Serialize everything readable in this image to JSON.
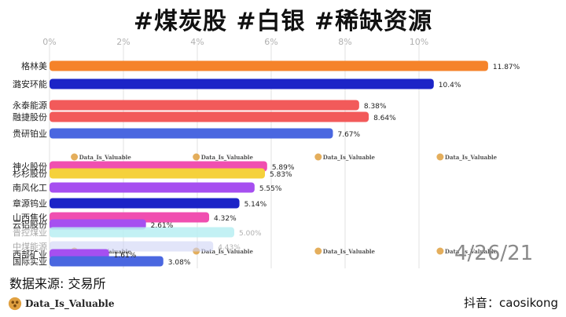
{
  "title": "#煤炭股 #白银 #稀缺资源",
  "date": "4/26/21",
  "source": "数据来源: 交易所",
  "brand": "Data_Is_Valuable",
  "tiktok": "抖音：caosikong",
  "chart_data": {
    "type": "bar",
    "orientation": "horizontal",
    "x_ticks": [
      "0%",
      "2%",
      "4%",
      "6%",
      "8%",
      "10%"
    ],
    "xlim": [
      0,
      12
    ],
    "grid": true,
    "value_format": "percent",
    "categories": [
      "格林美",
      "潞安环能",
      "永泰能源",
      "融捷股份",
      "贵研铂业",
      "神火股份",
      "杉杉股份",
      "南风化工",
      "章源钨业",
      "山西焦化",
      "云铝股份",
      "晋控煤业",
      "中煤能源",
      "西部矿业",
      "国际实业"
    ],
    "values": [
      11.87,
      10.4,
      8.38,
      8.64,
      7.67,
      5.89,
      5.83,
      5.55,
      5.14,
      4.32,
      2.61,
      5.0,
      4.43,
      1.61,
      3.08
    ],
    "value_labels": [
      "11.87%",
      "10.4%",
      "8.38%",
      "8.64%",
      "7.67%",
      "5.89%",
      "5.83%",
      "5.55%",
      "5.14%",
      "4.32%",
      "2.61%",
      "5.00%",
      "4.43%",
      "1.61%",
      "3.08%"
    ],
    "colors": [
      "#f5832a",
      "#1c24c7",
      "#f25a5a",
      "#f25a5a",
      "#4a67e0",
      "#f04fb0",
      "#f5d13c",
      "#a64ff0",
      "#1c24c7",
      "#f04fb0",
      "#a64ff0",
      "#b9eef2",
      "#cfd3f5",
      "#a64ff0",
      "#4a67e0"
    ],
    "opacity": [
      1,
      1,
      1,
      1,
      1,
      1,
      1,
      1,
      1,
      1,
      1,
      0.85,
      0.6,
      1,
      1
    ],
    "label_shade": [
      "dark",
      "dark",
      "dark",
      "dark",
      "dark",
      "dark",
      "dark",
      "dark",
      "dark",
      "dark",
      "dark",
      "light",
      "light",
      "dark",
      "dark"
    ]
  },
  "watermark": "Data_Is_Valuable",
  "watermark_x_values": [
    0.8,
    4.1,
    7.4,
    10.7
  ]
}
